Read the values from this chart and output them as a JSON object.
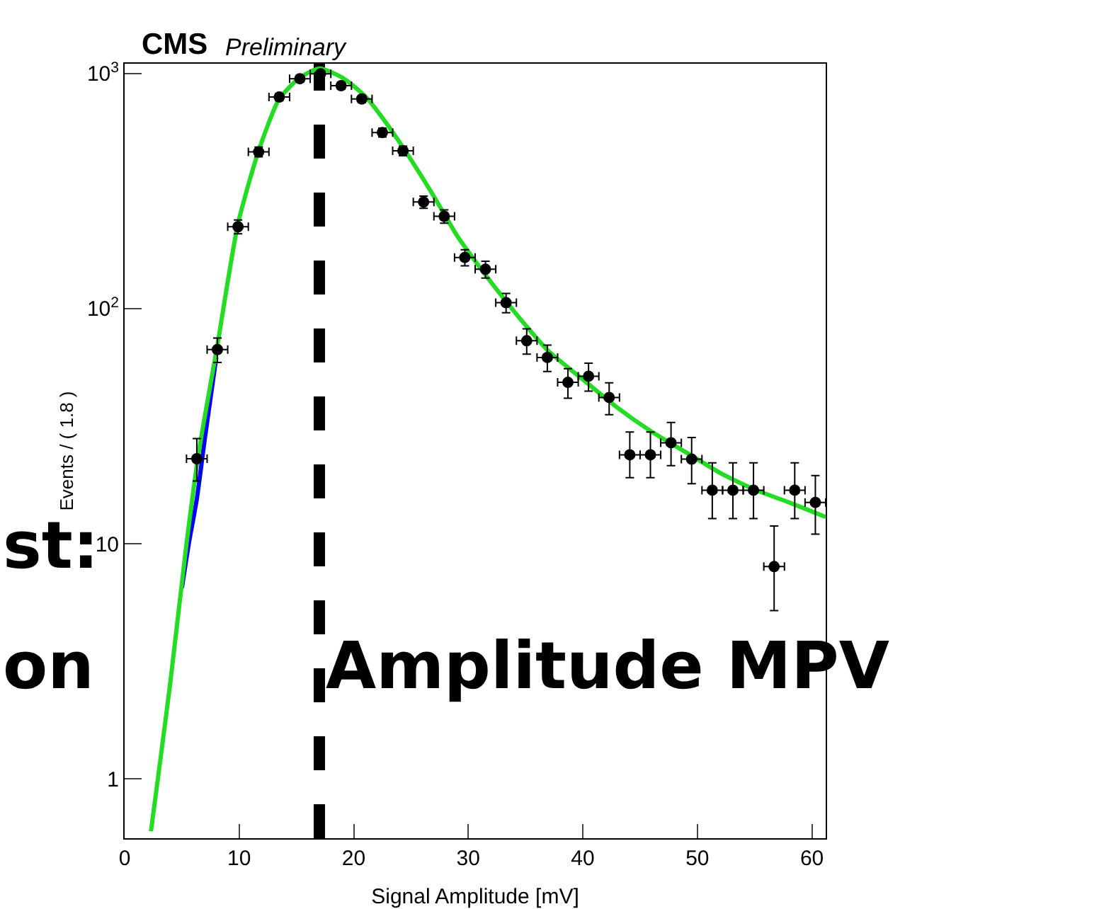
{
  "chart_data": {
    "type": "scatter",
    "title": "CMS",
    "subtitle": "Preliminary",
    "xlabel": "Signal Amplitude [mV]",
    "ylabel": "Events / ( 1.8 )",
    "annotations": [
      "Amplitude MPV",
      "st:",
      "on"
    ],
    "xlim": [
      0,
      61.2
    ],
    "xticks": [
      0,
      10,
      20,
      30,
      40,
      50,
      60
    ],
    "ylim": [
      0.56,
      1100
    ],
    "yticks": [
      1,
      10,
      {
        "value": 100,
        "label": "10$^{2}$"
      },
      {
        "value": 1000,
        "label": "10$^{3}$"
      }
    ],
    "log": "y",
    "ref_lines": [
      {
        "axis": "x",
        "value": 17,
        "color": "#000000",
        "line_style": "dashed"
      }
    ],
    "series": [
      {
        "type": "line",
        "color": "#0000ff",
        "line_style": "solid",
        "marker": "none",
        "x": [
          5,
          5.6,
          6.3,
          7,
          8
        ],
        "values": [
          6.5,
          10,
          15.5,
          28,
          62
        ]
      },
      {
        "type": "line",
        "color": "#22dd22",
        "line_style": "solid",
        "marker": "none",
        "x": [
          2.3,
          2.9,
          4,
          5.4,
          6.5,
          8.1,
          9.9,
          11.7,
          13.5,
          15.3,
          17,
          19,
          21,
          23,
          25,
          27,
          29,
          31,
          33,
          35,
          37,
          40,
          43,
          46,
          49,
          52,
          55,
          58,
          61.2
        ],
        "values": [
          0.6,
          1,
          2.6,
          10,
          25,
          70,
          230,
          470,
          780,
          960,
          1050,
          960,
          800,
          600,
          430,
          300,
          205,
          150,
          112,
          85,
          66,
          50,
          38,
          30,
          24.5,
          20,
          17,
          15,
          13
        ]
      },
      {
        "color": "#000000",
        "marker": "circle",
        "x": [
          6.3,
          8.1,
          9.9,
          11.7,
          13.5,
          15.3,
          17.1,
          18.9,
          20.7,
          22.5,
          24.3,
          26.1,
          27.9,
          29.7,
          31.5,
          33.3,
          35.1,
          36.9,
          38.7,
          40.5,
          42.3,
          44.1,
          45.9,
          47.7,
          49.5,
          51.3,
          53.1,
          54.9,
          56.7,
          58.5,
          60.3
        ],
        "values": [
          23,
          67,
          223,
          464,
          794,
          950,
          996,
          887,
          779,
          561,
          469,
          284,
          247,
          165,
          147,
          106,
          73,
          62,
          48.6,
          51.6,
          41.9,
          23.9,
          23.9,
          26.9,
          22.9,
          16.9,
          16.9,
          16.9,
          8,
          16.9,
          15
        ],
        "errors": [
          [
            18.5,
            28
          ],
          8,
          15,
          22,
          28,
          31,
          32,
          30,
          28,
          24,
          22,
          17,
          16,
          13,
          12,
          10,
          9,
          8,
          7,
          7,
          6.5,
          [
            19.1,
            29.9
          ],
          [
            19.1,
            29.9
          ],
          [
            21.5,
            32.8
          ],
          [
            18,
            28.3
          ],
          [
            12.8,
            22.1
          ],
          [
            12.8,
            22.1
          ],
          [
            12.8,
            22.1
          ],
          [
            5.2,
            11.9
          ],
          [
            12.8,
            22.1
          ],
          [
            11,
            19.5
          ]
        ],
        "xerrors": [
          0.9,
          0.9,
          0.9,
          0.9,
          0.9,
          0.9,
          0.9,
          0.9,
          0.9,
          0.9,
          0.9,
          0.9,
          0.9,
          0.9,
          0.9,
          0.9,
          0.9,
          0.9,
          0.9,
          0.9,
          0.9,
          0.9,
          0.9,
          0.9,
          0.9,
          0.9,
          0.9,
          0.9,
          0.9,
          0.9,
          0.9
        ]
      }
    ]
  }
}
